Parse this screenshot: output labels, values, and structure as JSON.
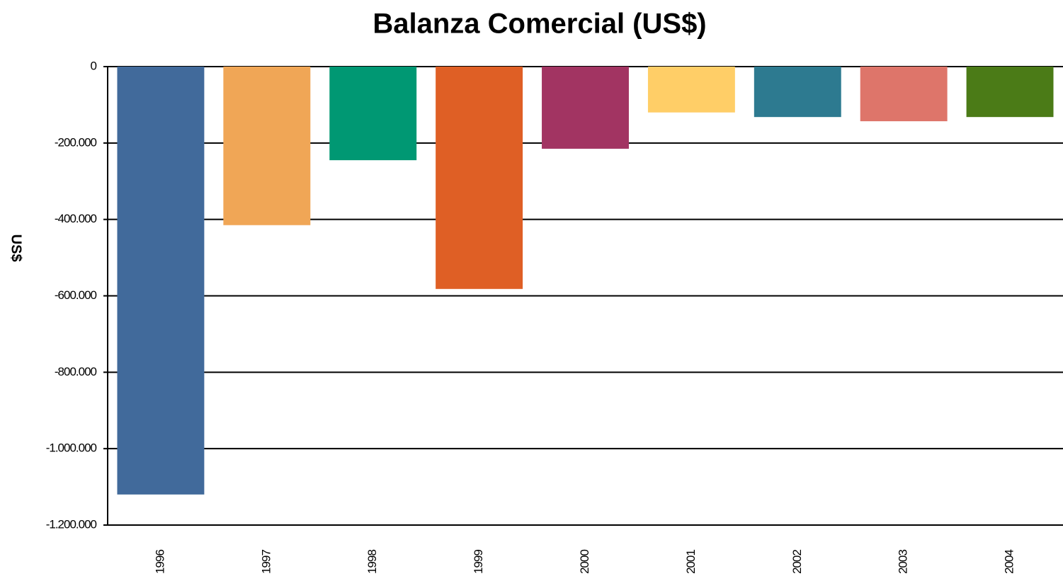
{
  "chart_data": {
    "type": "bar",
    "title": "Balanza Comercial (US$)",
    "y_label": "US$",
    "categories": [
      "1996",
      "1997",
      "1998",
      "1999",
      "2000",
      "2001",
      "2002",
      "2003",
      "2004"
    ],
    "values": [
      -1120000,
      -415000,
      -245000,
      -582000,
      -215000,
      -120000,
      -132000,
      -143000,
      -132000
    ],
    "colors": [
      "#416a9b",
      "#f0a656",
      "#009873",
      "#df5f25",
      "#a23462",
      "#ffce67",
      "#2d7a90",
      "#de756a",
      "#4b7b17"
    ],
    "ylim": [
      -1200000,
      0
    ],
    "yticks": [
      0,
      {
        "value": -200000,
        "label": "-200.000"
      },
      {
        "value": -400000,
        "label": "-400.000"
      },
      {
        "value": -600000,
        "label": "-600.000"
      },
      {
        "value": -800000,
        "label": "-800.000"
      },
      {
        "value": -1000000,
        "label": "-1.000.000"
      },
      {
        "value": -1200000,
        "label": "-1.200.000"
      }
    ],
    "grid": true
  }
}
